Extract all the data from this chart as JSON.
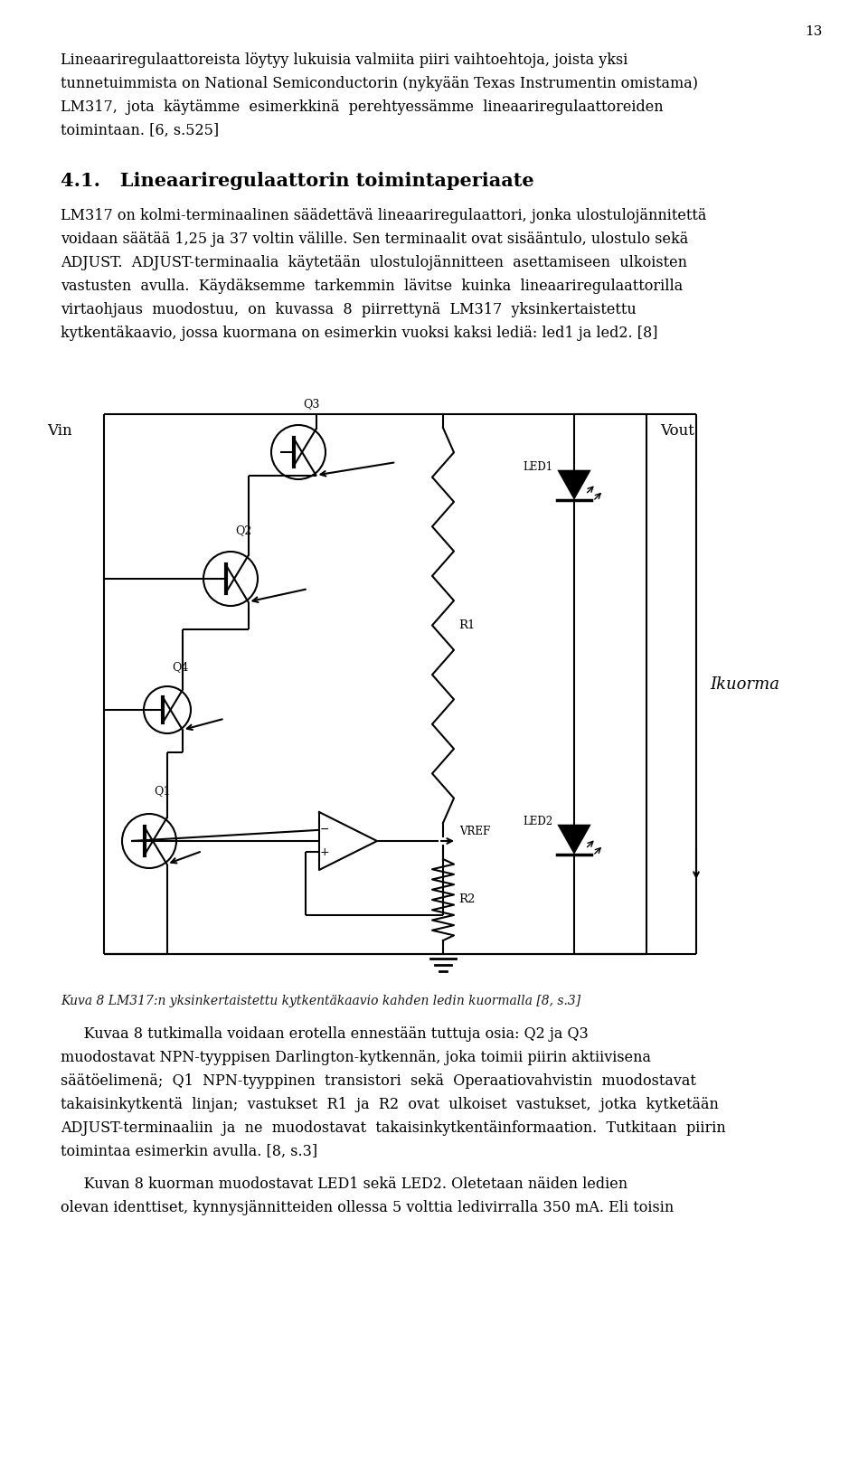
{
  "page_number": "13",
  "bg_color": "#ffffff",
  "text_color": "#000000",
  "para1_lines": [
    "Lineaariregulaattoreista löytyy lukuisia valmiita piiri vaihtoehtoja, joista yksi",
    "tunnetuimmista on National Semiconductorin (nykyään Texas Instrumentin omistama)",
    "LM317,  jota  käytämme  esimerkkinä  perehtyessämme  lineaariregulaattoreiden",
    "toimintaan. [6, s.525]"
  ],
  "section_title": "4.1.   Lineaariregulaattorin toimintaperiaate",
  "para2_lines": [
    "LM317 on kolmi-terminaalinen säädettävä lineaariregulaattori, jonka ulostulojännitettä",
    "voidaan säätää 1,25 ja 37 voltin välille. Sen terminaalit ovat sisääntulo, ulostulo sekä",
    "ADJUST.  ADJUST-terminaalia  käytetään  ulostulojännitteen  asettamiseen  ulkoisten",
    "vastusten  avulla.  Käydäksemme  tarkemmin  lävitse  kuinka  lineaariregulaattorilla",
    "virtaohjaus  muodostuu,  on  kuvassa  8  piirrettynä  LM317  yksinkertaistettu",
    "kytkentäkaavio, jossa kuormana on esimerkin vuoksi kaksi lediä: led1 ja led2. [8]"
  ],
  "figure_caption": "Kuva 8 LM317:n yksinkertaistettu kytkentäkaavio kahden ledin kuormalla [8, s.3]",
  "para3_lines": [
    "     Kuvaa 8 tutkimalla voidaan erotella ennestään tuttuja osia: Q2 ja Q3",
    "muodostavat NPN-tyyppisen Darlington-kytkennän, joka toimii piirin aktiivisena",
    "säätöelimenä;  Q1  NPN-tyyppinen  transistori  sekä  Operaatiovahvistin  muodostavat",
    "takaisinkytkentä  linjan;  vastukset  R1  ja  R2  ovat  ulkoiset  vastukset,  jotka  kytketään",
    "ADJUST-terminaaliin  ja  ne  muodostavat  takaisinkytkentäinformaation.  Tutkitaan  piirin",
    "toimintaa esimerkin avulla. [8, s.3]"
  ],
  "para4_lines": [
    "     Kuvan 8 kuorman muodostavat LED1 sekä LED2. Oletetaan näiden ledien",
    "olevan identtiset, kynnysjännitteiden ollessa 5 volttia ledivirralla 350 mA. Eli toisin"
  ]
}
